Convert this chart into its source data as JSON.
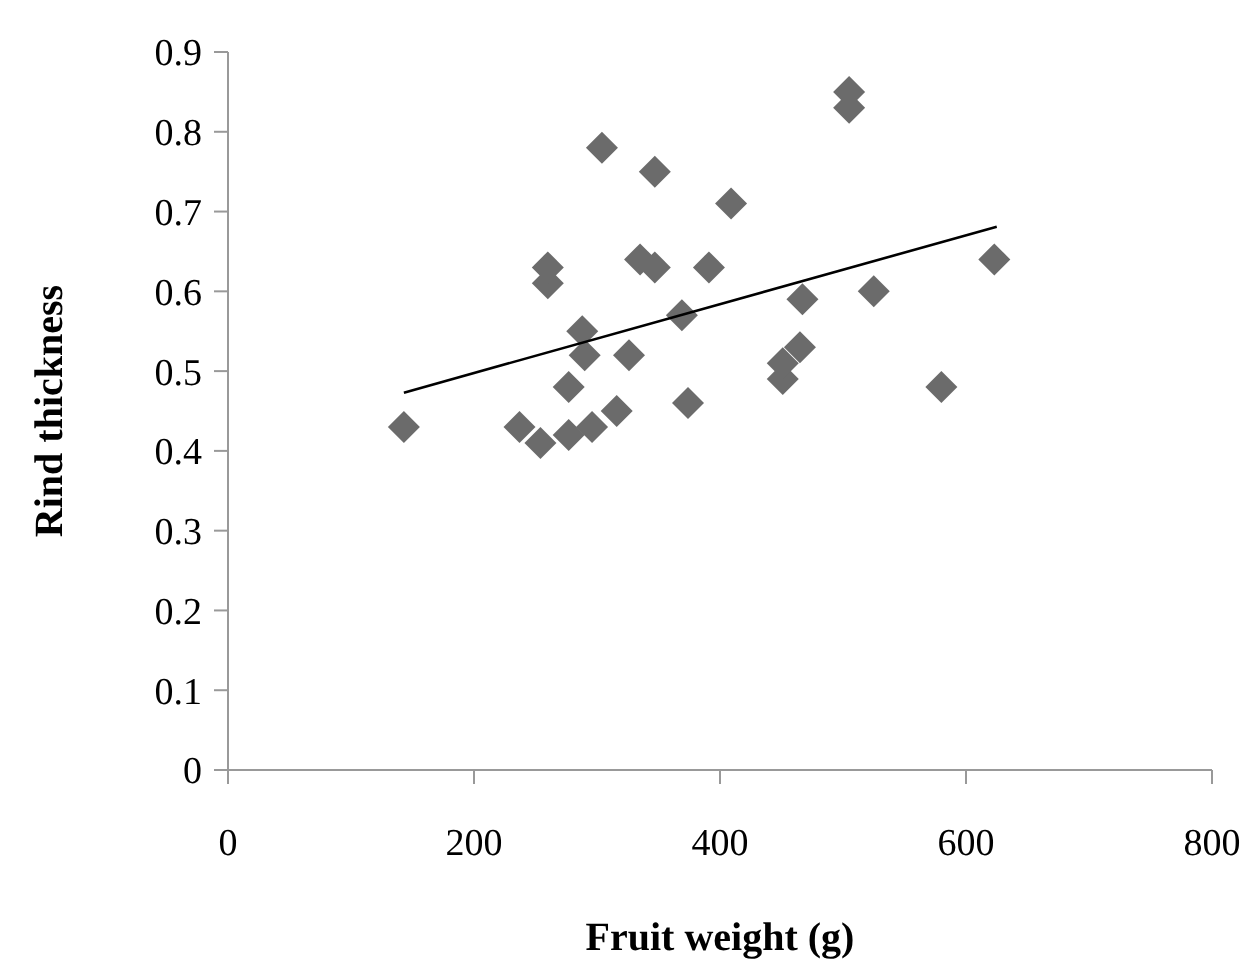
{
  "chart_data": {
    "type": "scatter",
    "xlabel": "Fruit weight (g)",
    "ylabel": "Rind thickness",
    "xlim": [
      0,
      800
    ],
    "xticks": [
      0,
      200,
      400,
      600,
      800
    ],
    "ylim": [
      0,
      0.9
    ],
    "yticks": [
      0,
      0.1,
      0.2,
      0.3,
      0.4,
      0.5,
      0.6,
      0.7,
      0.8,
      0.9
    ],
    "grid": false,
    "legend": false,
    "series": [
      {
        "type": "scatter",
        "color": "#6b6b6b",
        "marker": "diamond",
        "x": [
          143,
          237,
          254,
          277,
          296,
          316,
          277,
          290,
          288,
          260,
          260,
          304,
          347,
          335,
          347,
          326,
          369,
          374,
          391,
          409,
          451,
          451,
          465,
          467,
          505,
          505,
          525,
          580,
          623
        ],
        "values": [
          0.43,
          0.43,
          0.41,
          0.42,
          0.43,
          0.45,
          0.48,
          0.52,
          0.55,
          0.61,
          0.63,
          0.78,
          0.75,
          0.64,
          0.63,
          0.52,
          0.57,
          0.46,
          0.63,
          0.71,
          0.49,
          0.51,
          0.53,
          0.59,
          0.85,
          0.83,
          0.6,
          0.48,
          0.64
        ]
      },
      {
        "type": "line",
        "color": "#000000",
        "marker": "none",
        "x": [
          143,
          625
        ],
        "values": [
          0.473,
          0.681
        ]
      }
    ]
  }
}
